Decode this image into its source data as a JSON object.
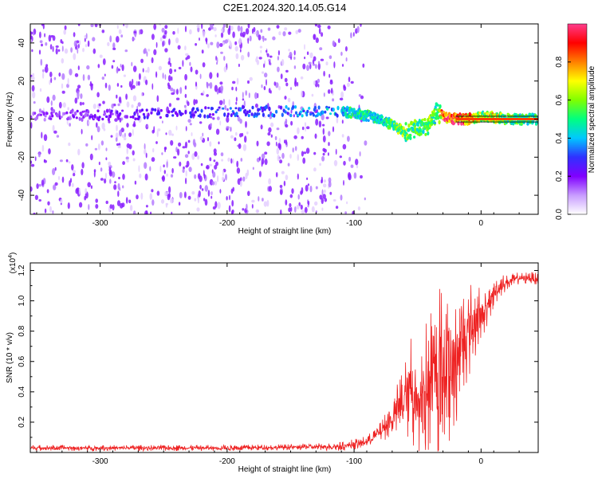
{
  "figure": {
    "title": "C2E1.2024.320.14.05.G14"
  },
  "chart_data": [
    {
      "type": "heatmap",
      "title": "C2E1.2024.320.14.05.G14",
      "xlabel": "Height of straight line (km)",
      "ylabel": "Frequency (Hz)",
      "xlim": [
        -355,
        45
      ],
      "ylim": [
        -50,
        50
      ],
      "xticks": [
        -300,
        -200,
        -100,
        0
      ],
      "yticks": [
        -40,
        -20,
        0,
        20,
        40
      ],
      "colorbar": {
        "label": "Normalized spectral amplitude",
        "range": [
          0,
          1
        ],
        "ticks": [
          "0.0",
          "0.2",
          "0.4",
          "0.6",
          "0.8"
        ],
        "colors": [
          "#ffffff",
          "#c89cff",
          "#8000ff",
          "#3030ff",
          "#00c8ff",
          "#00ff80",
          "#80ff00",
          "#ffff00",
          "#ff8000",
          "#ff0000",
          "#ff3c8c"
        ]
      },
      "noise_region": {
        "x_range": [
          -355,
          -85
        ],
        "freq_range": [
          -50,
          50
        ],
        "level": 0.15
      },
      "signal_track": {
        "x": [
          -355,
          -300,
          -250,
          -200,
          -150,
          -110,
          -100,
          -90,
          -80,
          -70,
          -60,
          -50,
          -40,
          -35,
          -30,
          -20,
          -10,
          0,
          10,
          20,
          45
        ],
        "freq": [
          2,
          2,
          3,
          4,
          4,
          4,
          3,
          2,
          0,
          -3,
          -7,
          -5,
          -3,
          4,
          1,
          0,
          0,
          1,
          1,
          0,
          0
        ],
        "amplitude": [
          0.15,
          0.2,
          0.25,
          0.3,
          0.35,
          0.4,
          0.5,
          0.5,
          0.45,
          0.55,
          0.6,
          0.55,
          0.6,
          0.5,
          0.9,
          0.9,
          0.8,
          0.6,
          0.7,
          0.55,
          0.5
        ]
      }
    },
    {
      "type": "line",
      "xlabel": "Height of straight line (km)",
      "ylabel": "SNR (10 * v/v)",
      "y_multiplier": "(x10",
      "y_multiplier_exp": "4",
      "y_multiplier_close": ")",
      "xlim": [
        -355,
        45
      ],
      "ylim": [
        0,
        1.25
      ],
      "xticks": [
        -300,
        -200,
        -100,
        0
      ],
      "yticks": [
        "0.2",
        "0.4",
        "0.6",
        "0.8",
        "1.0",
        "1.2"
      ],
      "color": "#ee2222",
      "series": [
        {
          "x": [
            -355,
            -300,
            -250,
            -200,
            -150,
            -110,
            -90,
            -80,
            -70,
            -65,
            -60,
            -55,
            -50,
            -45,
            -40,
            -35,
            -30,
            -25,
            -20,
            -15,
            -10,
            -5,
            0,
            5,
            10,
            15,
            20,
            30,
            40,
            45
          ],
          "y": [
            0.03,
            0.03,
            0.03,
            0.03,
            0.035,
            0.04,
            0.07,
            0.13,
            0.22,
            0.3,
            0.35,
            0.45,
            0.3,
            0.4,
            0.45,
            0.5,
            0.6,
            0.55,
            0.6,
            0.7,
            0.8,
            0.85,
            0.9,
            0.95,
            1.05,
            1.1,
            1.12,
            1.15,
            1.15,
            1.14
          ],
          "spread": [
            0.02,
            0.02,
            0.02,
            0.02,
            0.02,
            0.03,
            0.04,
            0.06,
            0.12,
            0.2,
            0.25,
            0.4,
            0.3,
            0.45,
            0.5,
            0.55,
            0.6,
            0.5,
            0.45,
            0.4,
            0.35,
            0.25,
            0.2,
            0.12,
            0.1,
            0.08,
            0.05,
            0.04,
            0.04,
            0.04
          ]
        }
      ]
    }
  ]
}
